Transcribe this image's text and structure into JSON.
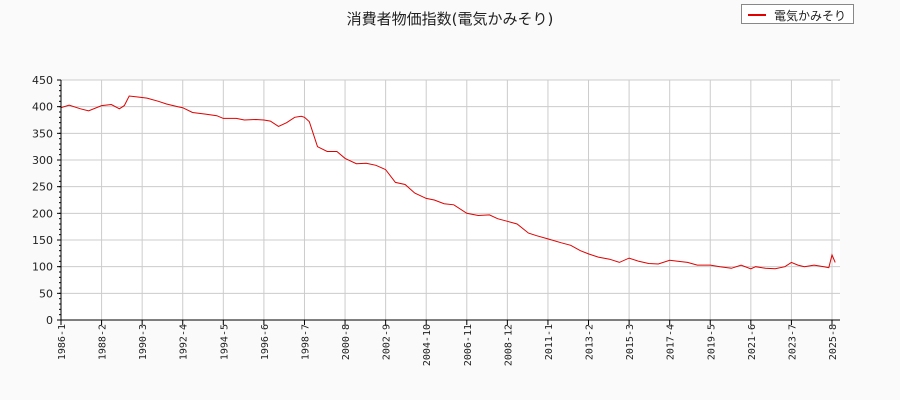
{
  "title": "消費者物価指数(電気かみそり)",
  "legend": {
    "label": "電気かみそり",
    "color": "#e00000"
  },
  "chart_data": {
    "type": "line",
    "title": "消費者物価指数(電気かみそり)",
    "xlabel": "",
    "ylabel": "",
    "ylim": [
      0,
      450
    ],
    "yticks": [
      0,
      50,
      100,
      150,
      200,
      250,
      300,
      350,
      400,
      450
    ],
    "xticks": [
      "1986-1",
      "1988-2",
      "1990-3",
      "1992-4",
      "1994-5",
      "1996-6",
      "1998-7",
      "2000-8",
      "2002-9",
      "2004-10",
      "2006-11",
      "2008-12",
      "2011-1",
      "2013-2",
      "2015-3",
      "2017-4",
      "2019-5",
      "2021-6",
      "2023-7",
      "2025-8"
    ],
    "grid": true,
    "legend_position": "top-right",
    "series": [
      {
        "name": "電気かみそり",
        "color": "#e00000",
        "x": [
          "1986-1",
          "1986-6",
          "1987-1",
          "1987-6",
          "1988-2",
          "1988-8",
          "1989-1",
          "1989-4",
          "1989-7",
          "1990-1",
          "1990-6",
          "1991-1",
          "1991-6",
          "1992-1",
          "1992-4",
          "1992-10",
          "1993-6",
          "1994-1",
          "1994-5",
          "1995-1",
          "1995-6",
          "1996-1",
          "1996-6",
          "1996-10",
          "1997-3",
          "1997-8",
          "1998-1",
          "1998-5",
          "1998-7",
          "1998-10",
          "1999-3",
          "1999-9",
          "2000-3",
          "2000-8",
          "2001-3",
          "2001-9",
          "2002-3",
          "2002-9",
          "2003-3",
          "2003-9",
          "2004-3",
          "2004-10",
          "2005-3",
          "2005-9",
          "2006-3",
          "2006-11",
          "2007-6",
          "2008-1",
          "2008-6",
          "2008-12",
          "2009-6",
          "2010-1",
          "2010-6",
          "2011-1",
          "2011-9",
          "2012-3",
          "2012-9",
          "2013-2",
          "2013-8",
          "2014-3",
          "2014-9",
          "2015-3",
          "2015-9",
          "2016-3",
          "2016-9",
          "2017-4",
          "2017-9",
          "2018-3",
          "2018-9",
          "2019-5",
          "2019-11",
          "2020-6",
          "2020-12",
          "2021-6",
          "2021-9",
          "2022-3",
          "2022-9",
          "2023-3",
          "2023-7",
          "2023-11",
          "2024-3",
          "2024-9",
          "2025-3",
          "2025-6",
          "2025-8",
          "2025-10"
        ],
        "values": [
          398,
          403,
          396,
          392,
          402,
          404,
          396,
          402,
          420,
          418,
          416,
          410,
          405,
          400,
          398,
          389,
          386,
          383,
          378,
          378,
          375,
          376,
          375,
          373,
          363,
          370,
          380,
          382,
          380,
          372,
          325,
          316,
          316,
          303,
          293,
          294,
          290,
          282,
          258,
          254,
          238,
          228,
          225,
          218,
          216,
          200,
          196,
          197,
          190,
          185,
          180,
          163,
          158,
          152,
          145,
          140,
          130,
          124,
          118,
          114,
          108,
          116,
          110,
          106,
          105,
          112,
          110,
          108,
          103,
          103,
          100,
          97,
          103,
          96,
          100,
          97,
          96,
          100,
          108,
          103,
          100,
          103,
          100,
          98,
          122,
          108
        ]
      }
    ]
  }
}
